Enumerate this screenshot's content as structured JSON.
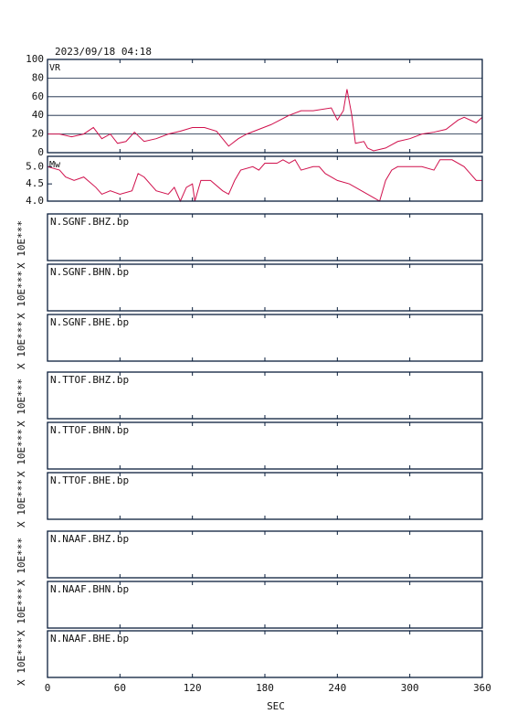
{
  "chart_data": [
    {
      "type": "line",
      "title": "2023/09/18 04:18",
      "ylabel": "VR",
      "xlim": [
        0,
        360
      ],
      "xticks": [
        0,
        60,
        120,
        180,
        240,
        300,
        360
      ],
      "ylim": [
        0,
        100
      ],
      "yticks": [
        0,
        20,
        40,
        60,
        80,
        100
      ],
      "grid": true,
      "x": [
        0,
        10,
        20,
        30,
        38,
        45,
        52,
        58,
        65,
        72,
        80,
        90,
        100,
        110,
        120,
        130,
        140,
        145,
        150,
        158,
        165,
        175,
        185,
        200,
        210,
        220,
        235,
        240,
        245,
        248,
        252,
        255,
        262,
        265,
        270,
        280,
        290,
        300,
        310,
        320,
        330,
        340,
        345,
        355,
        360
      ],
      "series": [
        {
          "color": "#d0104c",
          "values": [
            20,
            20,
            17,
            20,
            27,
            15,
            20,
            10,
            12,
            22,
            12,
            15,
            20,
            23,
            27,
            27,
            23,
            15,
            7,
            15,
            20,
            25,
            30,
            40,
            45,
            45,
            48,
            35,
            45,
            68,
            40,
            10,
            12,
            5,
            2,
            5,
            12,
            15,
            20,
            22,
            25,
            35,
            38,
            32,
            38
          ]
        }
      ]
    },
    {
      "type": "line",
      "ylabel": "Mw",
      "xlim": [
        0,
        360
      ],
      "xticks": [
        0,
        60,
        120,
        180,
        240,
        300,
        360
      ],
      "ylim": [
        4.0,
        5.3
      ],
      "yticks": [
        {
          "value": 4,
          "label": "4.0"
        },
        {
          "value": 4.5,
          "label": "4.5"
        },
        {
          "value": 5,
          "label": "5.0"
        }
      ],
      "grid": false,
      "x": [
        0,
        10,
        15,
        22,
        30,
        40,
        45,
        52,
        60,
        70,
        75,
        80,
        90,
        100,
        105,
        110,
        115,
        120,
        122,
        127,
        135,
        145,
        150,
        155,
        160,
        170,
        175,
        180,
        190,
        195,
        200,
        205,
        210,
        220,
        225,
        230,
        240,
        250,
        260,
        270,
        275,
        280,
        285,
        290,
        300,
        310,
        320,
        325,
        335,
        345,
        350,
        355,
        360
      ],
      "series": [
        {
          "color": "#d0104c",
          "values": [
            5.0,
            4.9,
            4.7,
            4.6,
            4.7,
            4.4,
            4.2,
            4.3,
            4.2,
            4.3,
            4.8,
            4.7,
            4.3,
            4.2,
            4.4,
            4.0,
            4.4,
            4.5,
            4.0,
            4.6,
            4.6,
            4.3,
            4.2,
            4.6,
            4.9,
            5.0,
            4.9,
            5.1,
            5.1,
            5.2,
            5.1,
            5.2,
            4.9,
            5.0,
            5.0,
            4.8,
            4.6,
            4.5,
            4.3,
            4.1,
            4.0,
            4.6,
            4.9,
            5.0,
            5.0,
            5.0,
            4.9,
            5.2,
            5.2,
            5.0,
            4.8,
            4.6,
            4.6
          ]
        }
      ]
    },
    {
      "type": "panels",
      "xlim": [
        0,
        360
      ],
      "xticks": [
        0,
        60,
        120,
        180,
        240,
        300,
        360
      ],
      "xlabel": "SEC",
      "panels": [
        {
          "label": "N.SGNF.BHZ.bp",
          "ylabel": "X 10E***"
        },
        {
          "label": "N.SGNF.BHN.bp",
          "ylabel": "X 10E***"
        },
        {
          "label": "N.SGNF.BHE.bp",
          "ylabel": "X 10E***"
        },
        {
          "label": "N.TTOF.BHZ.bp",
          "ylabel": "X 10E***"
        },
        {
          "label": "N.TTOF.BHN.bp",
          "ylabel": "X 10E***"
        },
        {
          "label": "N.TTOF.BHE.bp",
          "ylabel": "X 10E***"
        },
        {
          "label": "N.NAAF.BHZ.bp",
          "ylabel": "X 10E***"
        },
        {
          "label": "N.NAAF.BHN.bp",
          "ylabel": "X 10E***"
        },
        {
          "label": "N.NAAF.BHE.bp",
          "ylabel": "X 10E***"
        }
      ]
    }
  ]
}
